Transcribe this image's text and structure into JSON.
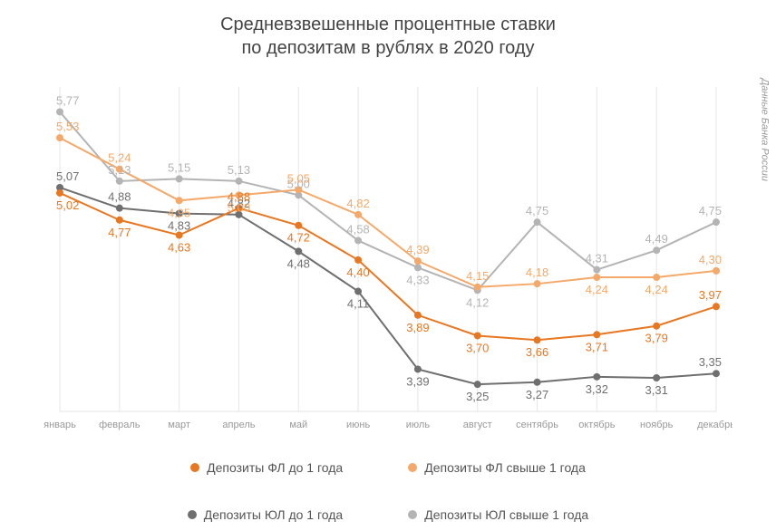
{
  "title_line1": "Средневзвешенные процентные ставки",
  "title_line2": "по депозитам в рублях в 2020 году",
  "source_label": "Данные Банка России",
  "chart": {
    "type": "line",
    "categories": [
      "январь",
      "февраль",
      "март",
      "апрель",
      "май",
      "июнь",
      "июль",
      "август",
      "сентябрь",
      "октябрь",
      "ноябрь",
      "декабрь"
    ],
    "ylim": [
      3.0,
      6.0
    ],
    "grid_color": "#e6e6e6",
    "background_color": "#ffffff",
    "line_width": 2,
    "marker_radius": 4,
    "label_fontsize": 13,
    "axis_fontsize": 11,
    "axis_color": "#999999",
    "series": [
      {
        "key": "fl_short",
        "name": "Депозиты ФЛ до 1 года",
        "color": "#e87722",
        "values": [
          5.02,
          4.77,
          4.63,
          4.88,
          4.72,
          4.4,
          3.89,
          3.7,
          3.66,
          3.71,
          3.79,
          3.97
        ],
        "labels": [
          "5,02",
          "4,77",
          "4,63",
          "4,88",
          "4,72",
          "4,40",
          "3,89",
          "3,70",
          "3,66",
          "3,71",
          "3,79",
          "3,97"
        ],
        "label_pos": [
          "below",
          "below",
          "below",
          "above",
          "below",
          "below",
          "below",
          "below",
          "below",
          "below",
          "below",
          "above"
        ]
      },
      {
        "key": "fl_long",
        "name": "Депозиты ФЛ свыше 1 года",
        "color": "#f4a96a",
        "values": [
          5.53,
          5.24,
          4.95,
          5.0,
          5.05,
          4.82,
          4.39,
          4.15,
          4.18,
          4.24,
          4.24,
          4.3
        ],
        "labels": [
          "5,53",
          "5,24",
          "4,95",
          "5,00",
          "5,05",
          "4,82",
          "4,39",
          "4,15",
          "4,18",
          "4,24",
          "4,24",
          "4,30"
        ],
        "label_pos": [
          "above",
          "above",
          "below",
          "below",
          "above",
          "above",
          "above",
          "above",
          "above",
          "below",
          "below",
          "above"
        ]
      },
      {
        "key": "ul_short",
        "name": "Депозиты ЮЛ до 1 года",
        "color": "#6f6f6f",
        "values": [
          5.07,
          4.88,
          4.83,
          4.82,
          4.48,
          4.11,
          3.39,
          3.25,
          3.27,
          3.32,
          3.31,
          3.35
        ],
        "labels": [
          "5,07",
          "4,88",
          "4,83",
          "4,82",
          "4,48",
          "4,11",
          "3,39",
          "3,25",
          "3,27",
          "3,32",
          "3,31",
          "3,35"
        ],
        "label_pos": [
          "above",
          "above",
          "below",
          "above",
          "below",
          "below",
          "below",
          "below",
          "below",
          "below",
          "below",
          "above"
        ]
      },
      {
        "key": "ul_long",
        "name": "Депозиты ЮЛ свыше 1 года",
        "color": "#b4b4b4",
        "values": [
          5.77,
          5.13,
          5.15,
          5.13,
          5.0,
          4.58,
          4.33,
          4.12,
          4.75,
          4.31,
          4.49,
          4.75
        ],
        "labels": [
          "5,77",
          "5,13",
          "5,15",
          "5,13",
          "5,00",
          "4,58",
          "4,33",
          "4,12",
          "4,75",
          "4,31",
          "4,49",
          "4,75"
        ],
        "label_pos": [
          "above",
          "above",
          "above",
          "above",
          "above",
          "above",
          "below",
          "below",
          "above",
          "above",
          "above",
          "above"
        ]
      }
    ]
  },
  "legend": {
    "row1": [
      {
        "label": "Депозиты ФЛ до 1 года",
        "color": "#e87722"
      },
      {
        "label": "Депозиты ФЛ свыше 1 года",
        "color": "#f4a96a"
      }
    ],
    "row2": [
      {
        "label": "Депозиты ЮЛ до 1 года",
        "color": "#6f6f6f"
      },
      {
        "label": "Депозиты ЮЛ свыше 1 года",
        "color": "#b4b4b4"
      }
    ]
  }
}
